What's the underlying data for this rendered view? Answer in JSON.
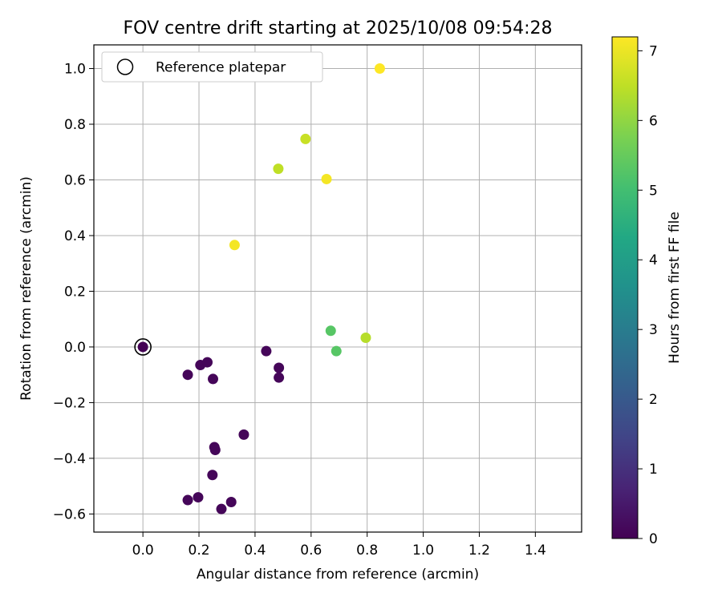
{
  "chart_data": {
    "type": "scatter",
    "title": "FOV centre drift starting at 2025/10/08 09:54:28",
    "xlabel": "Angular distance from reference (arcmin)",
    "ylabel": "Rotation from reference (arcmin)",
    "xlim": [
      -0.175,
      1.565
    ],
    "ylim": [
      -0.665,
      1.085
    ],
    "xticks": [
      0.0,
      0.2,
      0.4,
      0.6,
      0.8,
      1.0,
      1.2,
      1.4
    ],
    "xtick_labels": [
      "0.0",
      "0.2",
      "0.4",
      "0.6",
      "0.8",
      "1.0",
      "1.2",
      "1.4"
    ],
    "yticks": [
      -0.6,
      -0.4,
      -0.2,
      0.0,
      0.2,
      0.4,
      0.6,
      0.8,
      1.0
    ],
    "ytick_labels": [
      "−0.6",
      "−0.4",
      "−0.2",
      "0.0",
      "0.2",
      "0.4",
      "0.6",
      "0.8",
      "1.0"
    ],
    "grid": true,
    "legend": {
      "placement": "top-left",
      "entries": [
        "Reference platepar"
      ]
    },
    "reference_point": {
      "x": 0.0,
      "y": 0.0
    },
    "colorbar": {
      "label": "Hours from first FF file",
      "range": [
        0,
        7.2
      ],
      "ticks": [
        0,
        1,
        2,
        3,
        4,
        5,
        6,
        7
      ],
      "tick_labels": [
        "0",
        "1",
        "2",
        "3",
        "4",
        "5",
        "6",
        "7"
      ],
      "colormap": "viridis"
    },
    "points": [
      {
        "x": 0.0,
        "y": 0.0,
        "hours": 0.0
      },
      {
        "x": 0.16,
        "y": -0.1,
        "hours": 0.1
      },
      {
        "x": 0.205,
        "y": -0.065,
        "hours": 0.1
      },
      {
        "x": 0.23,
        "y": -0.055,
        "hours": 0.1
      },
      {
        "x": 0.25,
        "y": -0.115,
        "hours": 0.1
      },
      {
        "x": 0.44,
        "y": -0.015,
        "hours": 0.1
      },
      {
        "x": 0.485,
        "y": -0.075,
        "hours": 0.1
      },
      {
        "x": 0.485,
        "y": -0.11,
        "hours": 0.1
      },
      {
        "x": 0.36,
        "y": -0.315,
        "hours": 0.1
      },
      {
        "x": 0.255,
        "y": -0.36,
        "hours": 0.1
      },
      {
        "x": 0.258,
        "y": -0.37,
        "hours": 0.1
      },
      {
        "x": 0.248,
        "y": -0.46,
        "hours": 0.1
      },
      {
        "x": 0.16,
        "y": -0.55,
        "hours": 0.1
      },
      {
        "x": 0.197,
        "y": -0.54,
        "hours": 0.1
      },
      {
        "x": 0.315,
        "y": -0.557,
        "hours": 0.1
      },
      {
        "x": 0.28,
        "y": -0.582,
        "hours": 0.1
      },
      {
        "x": 0.67,
        "y": 0.058,
        "hours": 5.3
      },
      {
        "x": 0.69,
        "y": -0.015,
        "hours": 5.3
      },
      {
        "x": 0.795,
        "y": 0.033,
        "hours": 6.4
      },
      {
        "x": 0.483,
        "y": 0.64,
        "hours": 6.5
      },
      {
        "x": 0.58,
        "y": 0.747,
        "hours": 6.6
      },
      {
        "x": 0.655,
        "y": 0.603,
        "hours": 7.1
      },
      {
        "x": 0.327,
        "y": 0.366,
        "hours": 7.1
      },
      {
        "x": 0.845,
        "y": 1.0,
        "hours": 7.2
      }
    ]
  }
}
